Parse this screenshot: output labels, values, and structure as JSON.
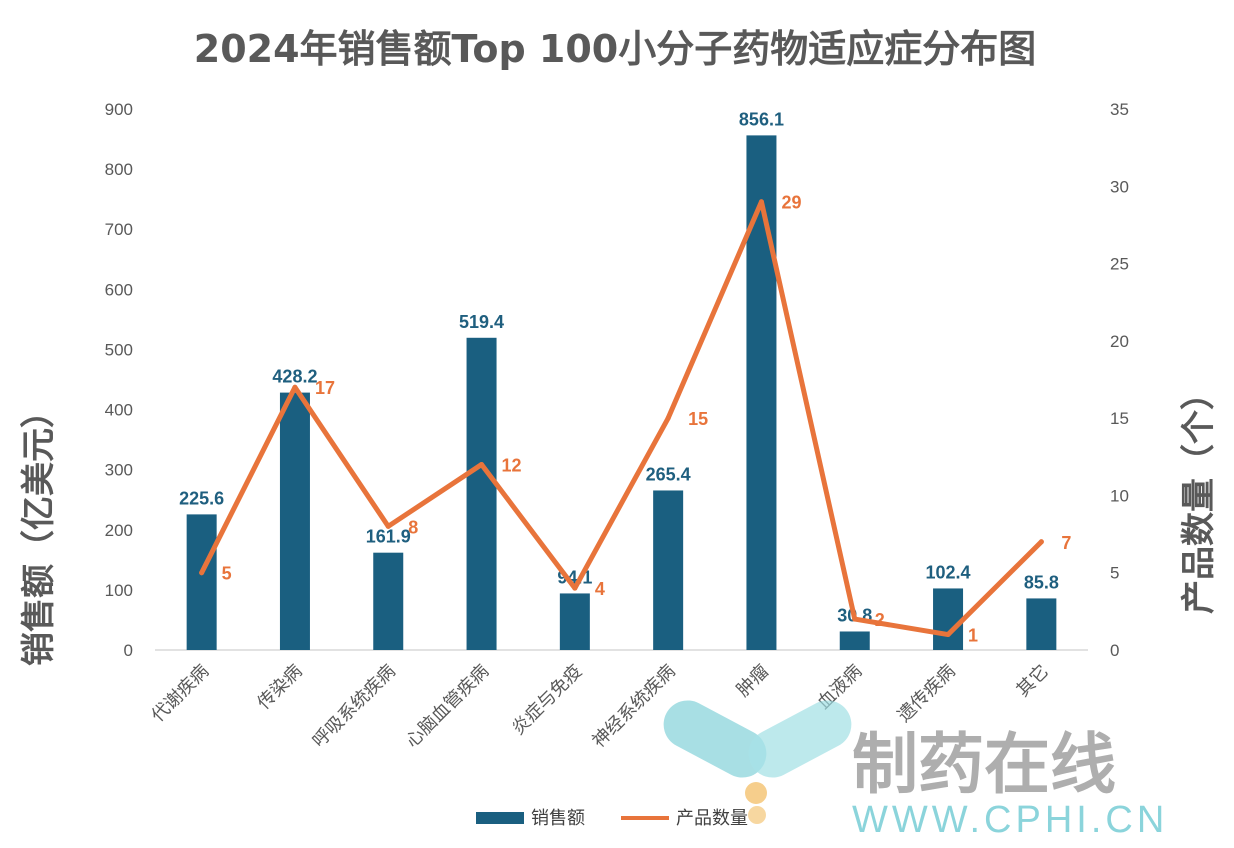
{
  "chart_data": {
    "type": "bar",
    "title": "2024年销售额Top 100小分子药物适应症分布图",
    "categories": [
      "代谢疾病",
      "传染病",
      "呼吸系统疾病",
      "心脑血管疾病",
      "炎症与免疫",
      "神经系统疾病",
      "肿瘤",
      "血液病",
      "遗传疾病",
      "其它"
    ],
    "series": [
      {
        "name": "销售额",
        "type": "bar",
        "axis": "left",
        "values": [
          225.6,
          428.2,
          161.9,
          519.4,
          94.1,
          265.4,
          856.1,
          30.8,
          102.4,
          85.8
        ],
        "color": "#1a5f80"
      },
      {
        "name": "产品数量",
        "type": "line",
        "axis": "right",
        "values": [
          5,
          17,
          8,
          12,
          4,
          15,
          29,
          2,
          1,
          7
        ],
        "color": "#e8743b"
      }
    ],
    "bar_labels": [
      "225.6",
      "428.2",
      "161.9",
      "519.4",
      "94.1",
      "265.4",
      "856.1",
      "30.8",
      "102.4",
      "85.8"
    ],
    "line_labels": [
      "5",
      "17",
      "8",
      "12",
      "4",
      "15",
      "29",
      "2",
      "1",
      "7"
    ],
    "ylabel": "销售额（亿美元）",
    "y2label": "产品数量（个）",
    "ylim": [
      0,
      900
    ],
    "y2lim": [
      0,
      35
    ],
    "yticks": [
      "0",
      "100",
      "200",
      "300",
      "400",
      "500",
      "600",
      "700",
      "800",
      "900"
    ],
    "y2ticks": [
      "0",
      "5",
      "10",
      "15",
      "20",
      "25",
      "30",
      "35"
    ],
    "grid": false,
    "legend": "bottom"
  },
  "legend": {
    "bar_label": "销售额",
    "line_label": "产品数量"
  },
  "watermark": {
    "text": "制药在线",
    "url": "WWW.CPHI.CN"
  }
}
